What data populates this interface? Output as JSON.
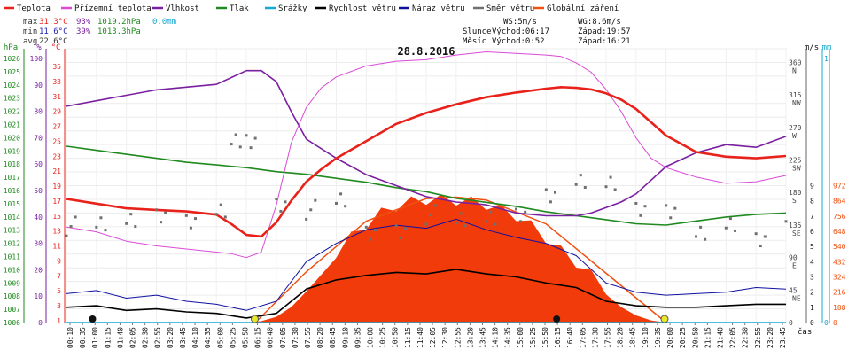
{
  "legend": [
    {
      "label": "Teplota",
      "color": "#e8221b"
    },
    {
      "label": "Přízemní teplota",
      "color": "#d94bd6"
    },
    {
      "label": "Vlhkost",
      "color": "#7a1fa0"
    },
    {
      "label": "Tlak",
      "color": "#1f8a1f"
    },
    {
      "label": "Srážky",
      "color": "#16a8d0"
    },
    {
      "label": "Rychlost větru",
      "color": "#000000"
    },
    {
      "label": "Náraz větru",
      "color": "#1010a0"
    },
    {
      "label": "Směr větru",
      "color": "#707070"
    },
    {
      "label": "Globální záření",
      "color": "#f05010"
    }
  ],
  "stats": {
    "max": {
      "label": "max",
      "temp": "31.3°C",
      "hum": "93%",
      "press": "1019.2hPa",
      "rain": "0.0mm"
    },
    "min": {
      "label": "min",
      "temp": "11.6°C",
      "hum": "39%",
      "press": "1013.3hPa"
    },
    "avg": {
      "label": "avg",
      "temp": "22.6°C"
    },
    "ws": "WS:5m/s",
    "wg": "WG:8.6m/s",
    "sun_label": "Slunce",
    "sunrise": "Východ:06:17",
    "sunset": "Západ:19:57",
    "moon_label": "Měsíc",
    "moonrise": "Východ:0:52",
    "moonset": "Západ:16:21"
  },
  "date": "28.8.2016",
  "axes": {
    "left": {
      "hpa": {
        "unit": "hPa",
        "ticks": [
          "1026",
          "1025",
          "1024",
          "1023",
          "1022",
          "1021",
          "1020",
          "1019",
          "1018",
          "1017",
          "1016",
          "1015",
          "1014",
          "1013",
          "1012",
          "1011",
          "1010",
          "1009",
          "1008",
          "1007",
          "1006"
        ]
      },
      "pct": {
        "unit": "%",
        "ticks": [
          "100",
          "90",
          "80",
          "70",
          "60",
          "50",
          "40",
          "30",
          "20",
          "10",
          "0"
        ]
      },
      "temp": {
        "unit": "°C",
        "ticks": [
          "35",
          "33",
          "31",
          "29",
          "27",
          "25",
          "23",
          "21",
          "19",
          "17",
          "15",
          "13",
          "11",
          "9",
          "7",
          "5",
          "3",
          "1"
        ]
      }
    },
    "right": {
      "dir": {
        "unit": "m/s",
        "ticks": [
          "360",
          "315",
          "270",
          "225",
          "180",
          "135",
          "90",
          "45",
          "0"
        ],
        "labels": [
          "N",
          "NW",
          "W",
          "SW",
          "S",
          "SE",
          "E",
          "NE",
          ""
        ]
      },
      "ms": {
        "unit": "m/s",
        "ticks": [
          "9",
          "8",
          "7",
          "6",
          "5",
          "4",
          "3",
          "2",
          "1",
          "0"
        ]
      },
      "mm": {
        "unit": "mm",
        "ticks": [
          "1",
          "0"
        ]
      },
      "rad": {
        "unit": "W/m²",
        "ticks": [
          "972",
          "864",
          "756",
          "648",
          "540",
          "432",
          "324",
          "216",
          "108",
          "0"
        ]
      }
    },
    "x_unit": "čas",
    "x_ticks": [
      "00:10",
      "00:35",
      "01:00",
      "01:15",
      "01:40",
      "02:05",
      "02:30",
      "02:55",
      "03:20",
      "03:45",
      "04:10",
      "04:35",
      "05:00",
      "05:25",
      "05:50",
      "06:15",
      "06:40",
      "07:05",
      "07:30",
      "07:55",
      "08:20",
      "08:45",
      "09:10",
      "09:35",
      "10:00",
      "10:25",
      "10:50",
      "11:15",
      "11:40",
      "12:05",
      "12:30",
      "12:55",
      "13:20",
      "13:45",
      "14:10",
      "14:35",
      "15:00",
      "15:25",
      "15:50",
      "16:15",
      "16:40",
      "17:05",
      "17:30",
      "17:55",
      "18:20",
      "18:45",
      "19:10",
      "19:35",
      "20:00",
      "20:25",
      "20:50",
      "21:15",
      "21:40",
      "22:05",
      "22:30",
      "22:55",
      "23:20",
      "23:45"
    ]
  },
  "chart_data": {
    "type": "line",
    "title": "28.8.2016",
    "xlabel": "čas",
    "x_hours_range": [
      0,
      24
    ],
    "series": [
      {
        "name": "Teplota",
        "unit": "°C",
        "axis": "temp",
        "color": "#e8221b",
        "x": [
          0,
          1,
          2,
          3,
          4,
          5,
          5.5,
          6,
          6.5,
          7,
          7.5,
          8,
          8.5,
          9,
          10,
          11,
          12,
          13,
          14,
          15,
          16,
          16.5,
          17,
          17.5,
          18,
          18.5,
          19,
          19.5,
          20,
          21,
          22,
          23,
          24
        ],
        "y": [
          16.8,
          16.2,
          15.6,
          15.4,
          15.2,
          14.8,
          13.6,
          12.2,
          12.0,
          13.8,
          16.6,
          19.0,
          20.6,
          22.0,
          24.2,
          26.4,
          27.8,
          28.9,
          29.8,
          30.4,
          30.9,
          31.1,
          31.0,
          30.8,
          30.3,
          29.5,
          28.3,
          26.6,
          24.9,
          22.8,
          22.2,
          22.0,
          22.3
        ]
      },
      {
        "name": "Přízemní teplota",
        "unit": "°C",
        "axis": "temp",
        "color": "#d94bd6",
        "x": [
          0,
          1,
          2,
          3,
          4,
          5,
          5.5,
          6,
          6.5,
          7,
          7.5,
          8,
          8.5,
          9,
          10,
          11,
          12,
          13,
          14,
          15,
          16,
          16.5,
          17,
          17.5,
          18,
          18.5,
          19,
          19.5,
          20,
          21,
          22,
          23,
          24
        ],
        "y": [
          13.2,
          12.6,
          11.4,
          10.8,
          10.4,
          10.0,
          9.8,
          9.3,
          10.0,
          16.0,
          24.0,
          28.5,
          31.0,
          32.4,
          33.8,
          34.4,
          34.6,
          35.2,
          35.6,
          35.4,
          35.2,
          35.0,
          34.2,
          33.0,
          30.8,
          28.0,
          24.6,
          22.0,
          20.8,
          19.6,
          18.8,
          19.0,
          19.8
        ]
      },
      {
        "name": "Vlhkost",
        "unit": "%",
        "axis": "pct",
        "color": "#7a1fa0",
        "x": [
          0,
          1,
          2,
          3,
          4,
          5,
          6,
          6.5,
          7,
          7.5,
          8,
          9,
          10,
          11,
          12,
          13,
          14,
          15,
          16,
          16.5,
          17,
          17.5,
          18,
          18.5,
          19,
          19.5,
          20,
          21,
          22,
          23,
          24
        ],
        "y": [
          79,
          81,
          83,
          85,
          86,
          87,
          92,
          92,
          88,
          77,
          67,
          60,
          54,
          50,
          46,
          44,
          43,
          40,
          39,
          39,
          39,
          40,
          42,
          44,
          47,
          52,
          57,
          62,
          65,
          64,
          68
        ]
      },
      {
        "name": "Tlak",
        "unit": "hPa",
        "axis": "hpa",
        "color": "#1f8a1f",
        "x": [
          0,
          1,
          2,
          3,
          4,
          5,
          6,
          7,
          8,
          9,
          10,
          11,
          12,
          13,
          14,
          15,
          16,
          17,
          18,
          19,
          20,
          21,
          22,
          23,
          24
        ],
        "y": [
          1019.2,
          1018.9,
          1018.6,
          1018.3,
          1018.0,
          1017.8,
          1017.6,
          1017.3,
          1017.1,
          1016.8,
          1016.5,
          1016.1,
          1015.8,
          1015.3,
          1015.0,
          1014.7,
          1014.3,
          1014.0,
          1013.7,
          1013.4,
          1013.3,
          1013.6,
          1013.9,
          1014.1,
          1014.2
        ]
      },
      {
        "name": "Rychlost větru",
        "unit": "m/s",
        "axis": "ms",
        "color": "#000000",
        "x": [
          0,
          1,
          2,
          3,
          4,
          5,
          6,
          7,
          8,
          9,
          10,
          11,
          12,
          13,
          14,
          15,
          16,
          17,
          18,
          19,
          20,
          21,
          22,
          23,
          24
        ],
        "y": [
          1.0,
          1.1,
          0.8,
          0.9,
          0.7,
          0.6,
          0.3,
          0.6,
          2.2,
          2.8,
          3.1,
          3.3,
          3.2,
          3.5,
          3.2,
          3.0,
          2.6,
          2.3,
          1.4,
          1.1,
          1.0,
          1.0,
          1.1,
          1.2,
          1.2
        ]
      },
      {
        "name": "Náraz větru",
        "unit": "m/s",
        "axis": "ms",
        "color": "#1010a0",
        "x": [
          0,
          1,
          2,
          3,
          4,
          5,
          6,
          7,
          8,
          9,
          10,
          11,
          12,
          13,
          14,
          15,
          16,
          17,
          18,
          19,
          20,
          21,
          22,
          23,
          24
        ],
        "y": [
          1.9,
          2.1,
          1.6,
          1.8,
          1.4,
          1.2,
          0.8,
          1.4,
          4.0,
          5.2,
          6.1,
          6.4,
          6.2,
          6.8,
          6.1,
          5.6,
          5.2,
          4.4,
          2.6,
          2.0,
          1.8,
          1.9,
          2.0,
          2.3,
          2.2
        ]
      },
      {
        "name": "Směr větru",
        "unit": "°",
        "axis": "dir",
        "color": "#707070",
        "x": [
          0,
          1,
          2,
          3,
          4,
          5,
          5.5,
          6,
          7,
          8,
          9,
          10,
          11,
          12,
          13,
          14,
          15,
          16,
          17,
          18,
          19,
          20,
          21,
          22,
          23,
          24
        ],
        "y": [
          135,
          140,
          138,
          150,
          135,
          160,
          250,
          255,
          160,
          155,
          170,
          130,
          125,
          150,
          145,
          140,
          150,
          170,
          200,
          190,
          160,
          150,
          130,
          135,
          120,
          130
        ]
      },
      {
        "name": "Globální záření",
        "unit": "W/m²",
        "axis": "rad",
        "color": "#f05010",
        "x": [
          6,
          6.5,
          7,
          7.5,
          8,
          8.5,
          9,
          9.5,
          10,
          10.5,
          11,
          11.5,
          12,
          12.5,
          13,
          13.5,
          14,
          14.5,
          15,
          15.5,
          16,
          16.5,
          17,
          17.5,
          18,
          18.5,
          19,
          19.5,
          20
        ],
        "y": [
          0,
          10,
          40,
          110,
          220,
          340,
          460,
          570,
          660,
          740,
          790,
          820,
          835,
          835,
          830,
          820,
          800,
          760,
          720,
          650,
          560,
          470,
          390,
          300,
          200,
          110,
          50,
          15,
          0
        ]
      },
      {
        "name": "Srážky",
        "unit": "mm",
        "axis": "mm",
        "color": "#16a8d0",
        "x": [
          0,
          24
        ],
        "y": [
          0,
          0
        ]
      }
    ],
    "clear_sky_radiation": {
      "x": [
        6.3,
        8,
        10,
        12,
        13,
        14,
        16,
        18,
        20
      ],
      "y": [
        0,
        360,
        720,
        880,
        890,
        870,
        700,
        350,
        0
      ]
    }
  }
}
